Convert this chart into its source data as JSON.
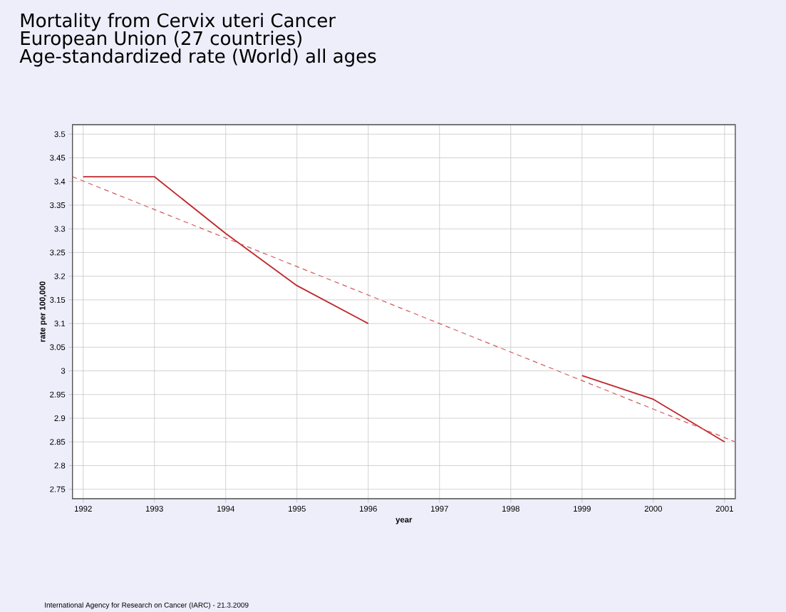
{
  "chart_data": {
    "type": "line",
    "title": "Mortality from Cervix uteri Cancer",
    "subtitle": "European Union (27 countries)",
    "annotations": [
      "Age-standardized rate (World) all ages",
      "International Agency for Research on Cancer (IARC) - 21.3.2009"
    ],
    "xlabel": "year",
    "ylabel": "rate per 100,000",
    "x": [
      1992,
      1993,
      1994,
      1995,
      1996,
      1997,
      1998,
      1999,
      2000,
      2001
    ],
    "series": [
      {
        "color": "#c0282d",
        "values": [
          3.41,
          3.41,
          3.29,
          3.18,
          3.1,
          null,
          null,
          2.99,
          2.94,
          2.85
        ],
        "line_style": "solid"
      },
      {
        "type": "line",
        "color": "#d05a5a",
        "x": [
          1991.85,
          2001.15
        ],
        "values": [
          3.41,
          2.85
        ],
        "line_style": "dashed"
      }
    ],
    "xlim": [
      1991.85,
      2001.15
    ],
    "ylim": [
      2.73,
      3.52
    ],
    "xticks": [
      1992,
      1993,
      1994,
      1995,
      1996,
      1997,
      1998,
      1999,
      2000,
      2001
    ],
    "yticks": [
      2.75,
      2.8,
      2.85,
      2.9,
      2.95,
      3,
      3.05,
      3.1,
      3.15,
      3.2,
      3.25,
      3.3,
      3.35,
      3.4,
      3.45,
      3.5
    ],
    "grid": true,
    "marker": "none"
  }
}
